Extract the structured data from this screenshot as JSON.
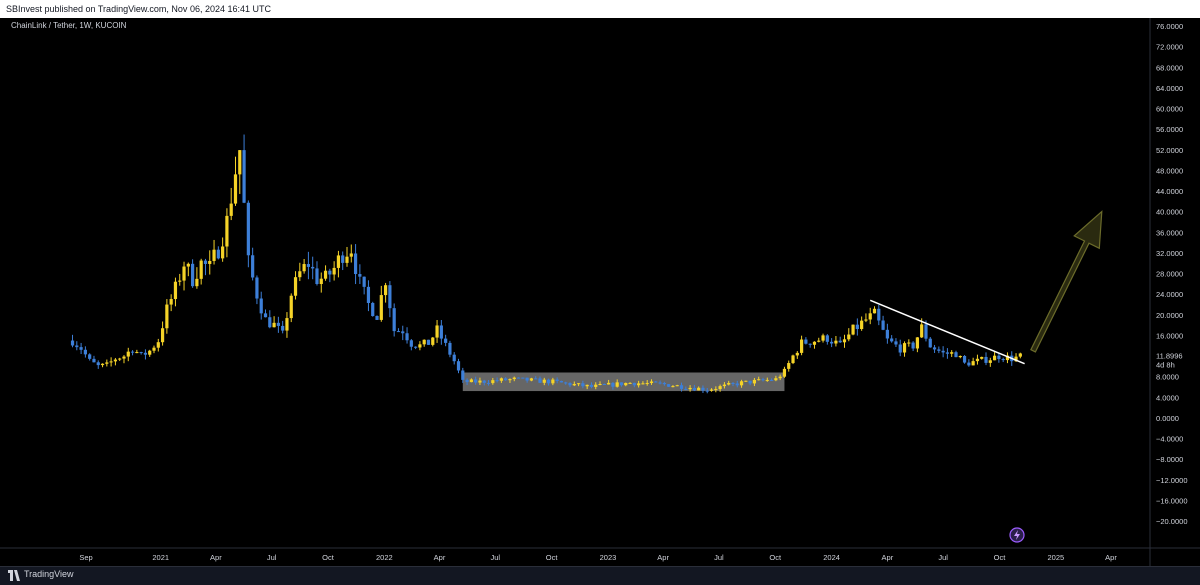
{
  "header": {
    "published": "SBInvest published on TradingView.com, Nov 06, 2024 16:41 UTC"
  },
  "symbol": {
    "label": "ChainLink / Tether, 1W, KUCOIN"
  },
  "footer": {
    "brand": "TradingView"
  },
  "icons": {
    "brand": "tradingview-logo-icon",
    "alert": "lightning-badge-icon"
  },
  "colors": {
    "up": "#f5d328",
    "down": "#3d7fd8",
    "box": "#787878",
    "trendline": "#ffffff",
    "arrow": "#4a4a1a"
  },
  "chart_data": {
    "type": "candlestick",
    "title": "ChainLink / Tether, 1W, KUCOIN",
    "y_ticks": [
      "76.0000",
      "72.0000",
      "68.0000",
      "64.0000",
      "60.0000",
      "56.0000",
      "52.0000",
      "48.0000",
      "44.0000",
      "40.0000",
      "36.0000",
      "32.0000",
      "28.0000",
      "24.0000",
      "20.0000",
      "16.0000",
      "12.0000",
      "8.0000",
      "4.0000",
      "0.0000",
      "−4.0000",
      "−8.0000",
      "−12.0000",
      "−16.0000",
      "−20.0000"
    ],
    "x_ticks": [
      "Sep",
      "2021",
      "Apr",
      "Jul",
      "Oct",
      "2022",
      "Apr",
      "Jul",
      "Oct",
      "2023",
      "Apr",
      "Jul",
      "Oct",
      "2024",
      "Apr",
      "Jul",
      "Oct",
      "2025",
      "Apr"
    ],
    "price_label": {
      "value": "11.8996",
      "countdown": "4d 8h"
    },
    "ylim": [
      -22,
      78
    ],
    "x_range": [
      "2020-08",
      "2025-05"
    ],
    "closes": [
      [
        "2020-08-10",
        15.0
      ],
      [
        "2020-08-24",
        13.5
      ],
      [
        "2020-09-07",
        11.0
      ],
      [
        "2020-09-21",
        10.0
      ],
      [
        "2020-10-05",
        10.2
      ],
      [
        "2020-10-19",
        11.5
      ],
      [
        "2020-11-02",
        12.0
      ],
      [
        "2020-11-16",
        13.5
      ],
      [
        "2020-11-30",
        12.0
      ],
      [
        "2020-12-14",
        13.0
      ],
      [
        "2020-12-28",
        15.0
      ],
      [
        "2021-01-11",
        21.0
      ],
      [
        "2021-01-25",
        25.0
      ],
      [
        "2021-02-08",
        30.0
      ],
      [
        "2021-02-22",
        27.0
      ],
      [
        "2021-03-08",
        30.0
      ],
      [
        "2021-03-22",
        29.0
      ],
      [
        "2021-04-05",
        33.0
      ],
      [
        "2021-04-19",
        38.0
      ],
      [
        "2021-05-03",
        48.0
      ],
      [
        "2021-05-10",
        52.0
      ],
      [
        "2021-05-24",
        30.0
      ],
      [
        "2021-06-07",
        24.0
      ],
      [
        "2021-06-21",
        19.0
      ],
      [
        "2021-07-05",
        18.0
      ],
      [
        "2021-07-19",
        16.0
      ],
      [
        "2021-08-02",
        24.0
      ],
      [
        "2021-08-16",
        28.0
      ],
      [
        "2021-08-30",
        30.0
      ],
      [
        "2021-09-13",
        27.0
      ],
      [
        "2021-09-27",
        27.0
      ],
      [
        "2021-10-11",
        29.0
      ],
      [
        "2021-10-25",
        32.0
      ],
      [
        "2021-11-08",
        33.0
      ],
      [
        "2021-11-22",
        26.0
      ],
      [
        "2021-12-06",
        22.0
      ],
      [
        "2021-12-20",
        20.0
      ],
      [
        "2022-01-03",
        27.0
      ],
      [
        "2022-01-17",
        17.0
      ],
      [
        "2022-01-31",
        17.0
      ],
      [
        "2022-02-14",
        14.5
      ],
      [
        "2022-02-28",
        14.0
      ],
      [
        "2022-03-14",
        14.5
      ],
      [
        "2022-03-28",
        17.0
      ],
      [
        "2022-04-11",
        14.0
      ],
      [
        "2022-04-25",
        11.0
      ],
      [
        "2022-05-09",
        7.0
      ],
      [
        "2022-06-06",
        7.0
      ],
      [
        "2022-08-01",
        7.5
      ],
      [
        "2022-10-03",
        7.0
      ],
      [
        "2022-12-05",
        6.0
      ],
      [
        "2023-02-06",
        6.8
      ],
      [
        "2023-04-03",
        6.5
      ],
      [
        "2023-06-12",
        5.5
      ],
      [
        "2023-08-07",
        6.8
      ],
      [
        "2023-10-02",
        7.5
      ],
      [
        "2023-10-16",
        9.0
      ],
      [
        "2023-10-30",
        12.0
      ],
      [
        "2023-11-13",
        14.5
      ],
      [
        "2023-12-04",
        15.0
      ],
      [
        "2023-12-25",
        15.5
      ],
      [
        "2024-01-15",
        14.0
      ],
      [
        "2024-02-05",
        17.0
      ],
      [
        "2024-02-26",
        19.0
      ],
      [
        "2024-03-11",
        20.0
      ],
      [
        "2024-04-01",
        15.0
      ],
      [
        "2024-04-22",
        13.5
      ],
      [
        "2024-05-13",
        14.0
      ],
      [
        "2024-05-27",
        17.5
      ],
      [
        "2024-06-10",
        14.0
      ],
      [
        "2024-07-01",
        12.5
      ],
      [
        "2024-07-22",
        12.5
      ],
      [
        "2024-08-05",
        10.5
      ],
      [
        "2024-08-26",
        11.0
      ],
      [
        "2024-09-16",
        11.5
      ],
      [
        "2024-09-30",
        12.0
      ],
      [
        "2024-10-21",
        11.5
      ],
      [
        "2024-11-04",
        11.9
      ]
    ],
    "range_box": {
      "from": "2022-05-09",
      "to": "2023-10-16",
      "low": 5.2,
      "high": 8.8
    },
    "trendline": [
      [
        "2024-03-04",
        22.8
      ],
      [
        "2024-11-11",
        10.5
      ]
    ],
    "arrow": {
      "from": [
        "2024-11-25",
        13.0
      ],
      "to": [
        "2025-03-17",
        40.0
      ]
    }
  }
}
